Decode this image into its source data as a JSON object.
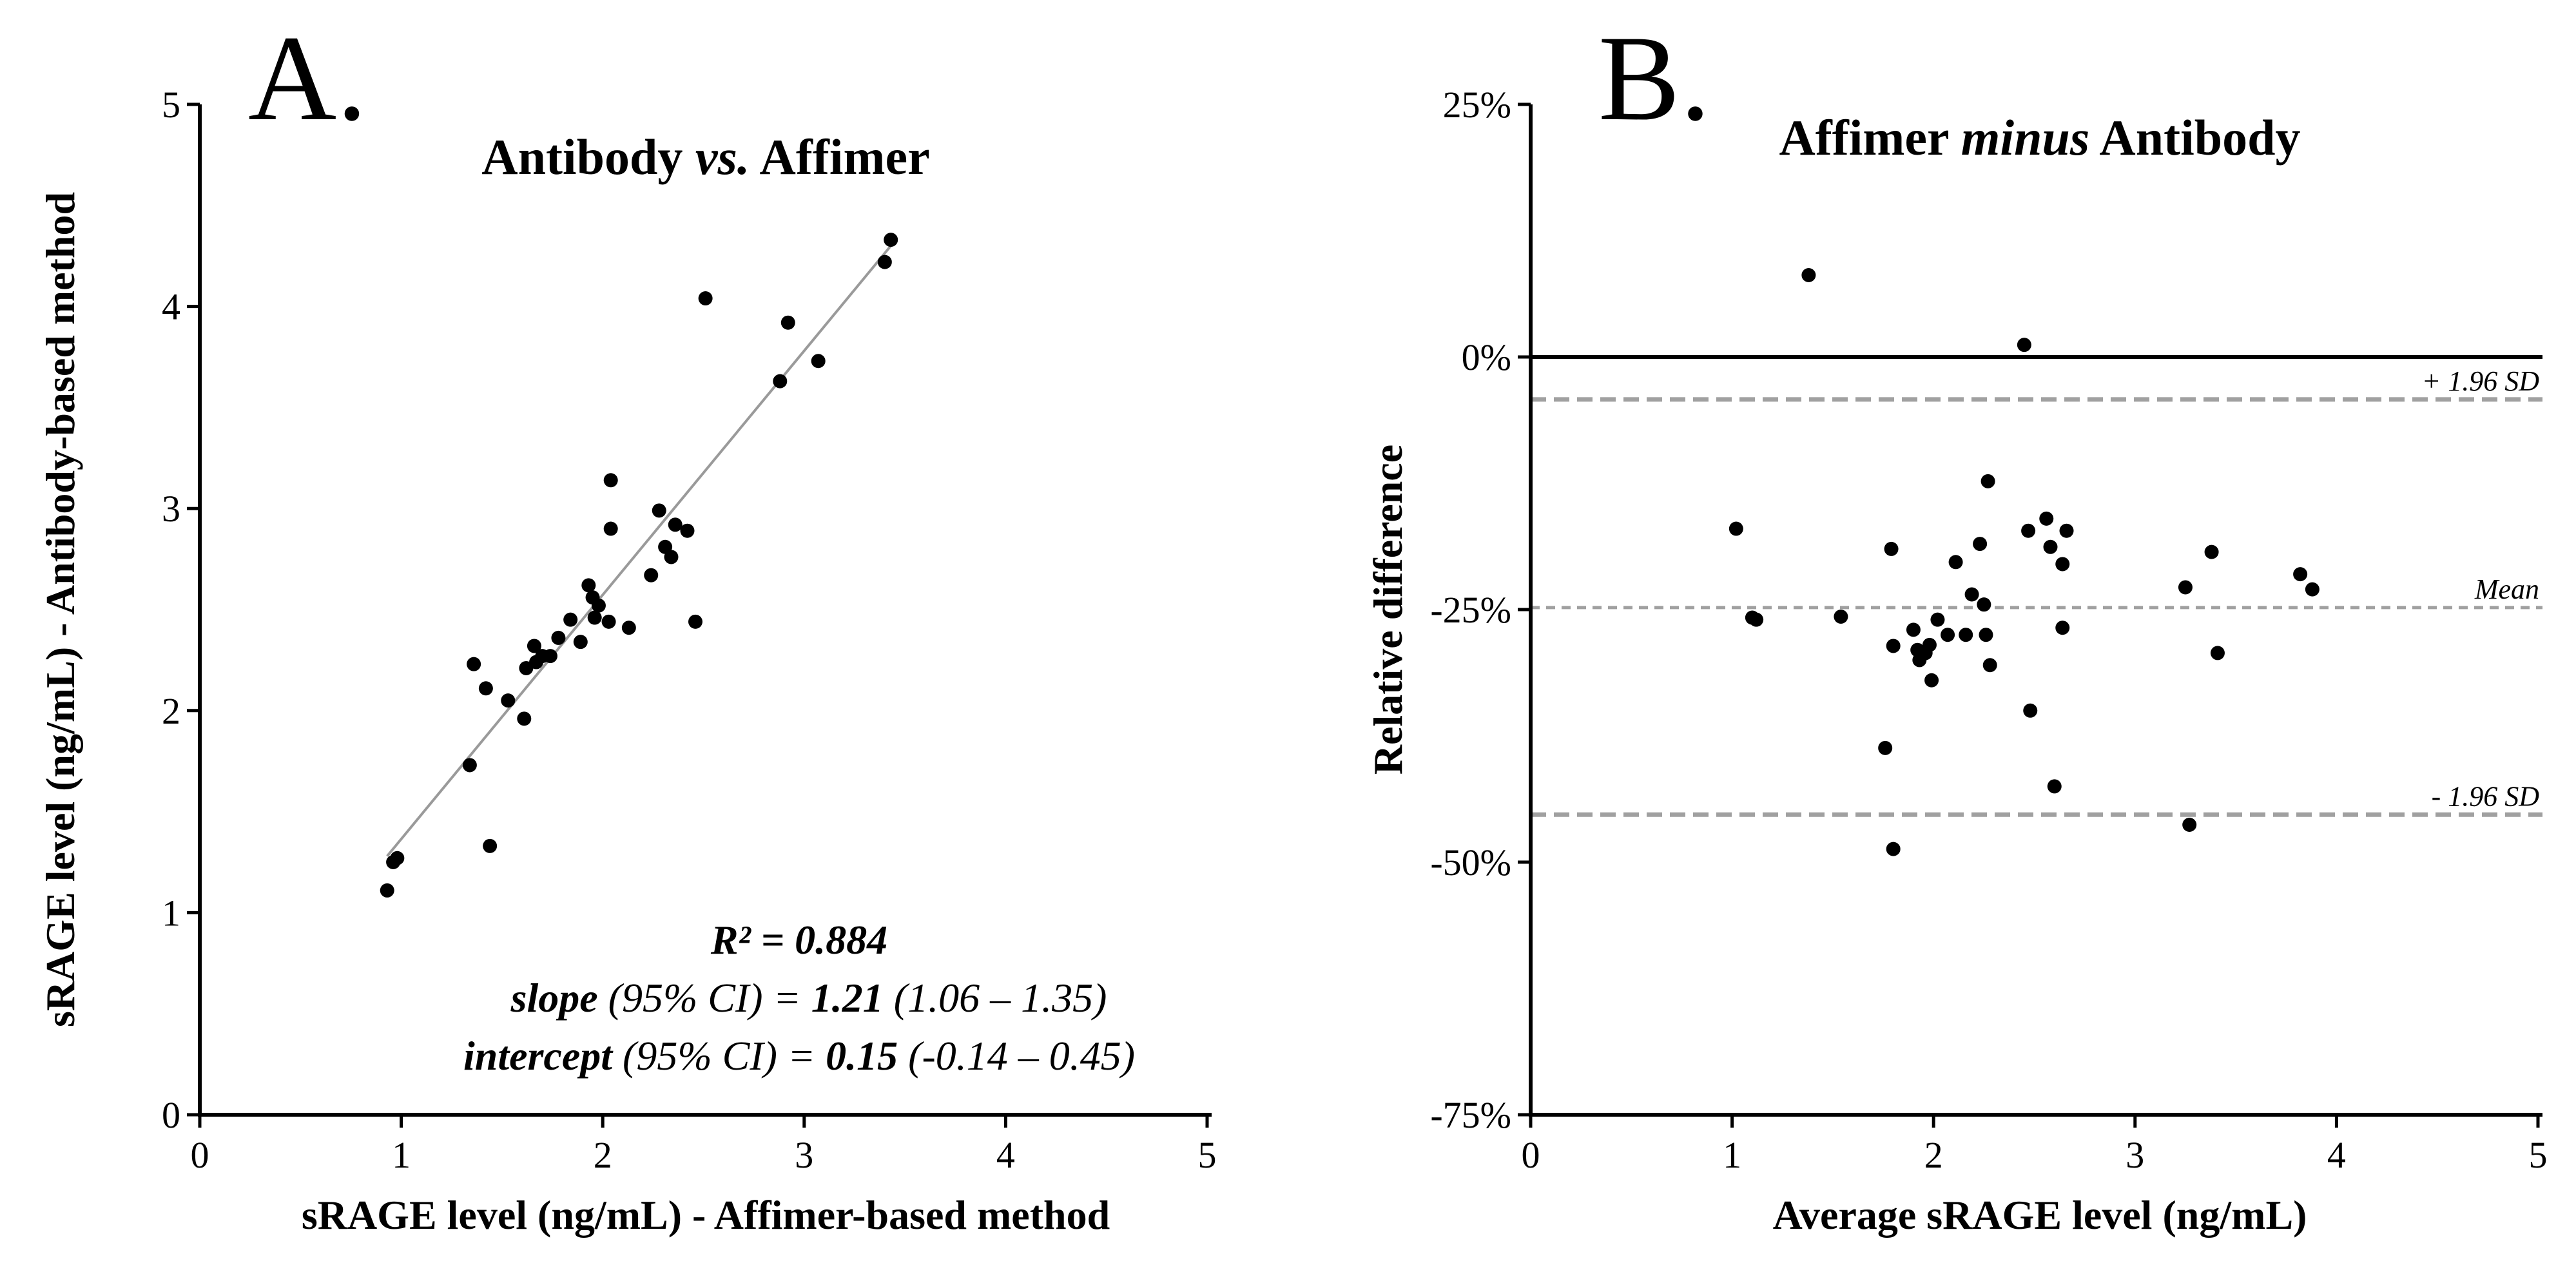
{
  "chart_data": [
    {
      "type": "scatter",
      "panel_label": "A.",
      "title": {
        "part1": "Antibody ",
        "emph": "vs.",
        "part2": " Affimer"
      },
      "xlabel": "sRAGE level (ng/mL) - Affimer-based method",
      "ylabel": "sRAGE level (ng/mL) - Antibody-based method",
      "xlim": [
        0,
        5
      ],
      "ylim": [
        0,
        5
      ],
      "x_ticks": [
        0,
        1,
        2,
        3,
        4,
        5
      ],
      "y_ticks": [
        0,
        1,
        2,
        3,
        4,
        5
      ],
      "x_tick_labels": [
        "0",
        "1",
        "2",
        "3",
        "4",
        "5"
      ],
      "y_tick_labels": [
        "0",
        "1",
        "2",
        "3",
        "4",
        "5"
      ],
      "points": [
        [
          0.93,
          1.11
        ],
        [
          0.96,
          1.25
        ],
        [
          0.98,
          1.27
        ],
        [
          1.34,
          1.73
        ],
        [
          1.36,
          2.23
        ],
        [
          1.42,
          2.11
        ],
        [
          1.44,
          1.33
        ],
        [
          1.53,
          2.05
        ],
        [
          1.61,
          1.96
        ],
        [
          1.62,
          2.21
        ],
        [
          1.66,
          2.32
        ],
        [
          1.67,
          2.24
        ],
        [
          1.7,
          2.27
        ],
        [
          1.74,
          2.27
        ],
        [
          1.78,
          2.36
        ],
        [
          1.84,
          2.45
        ],
        [
          1.89,
          2.34
        ],
        [
          1.93,
          2.62
        ],
        [
          1.95,
          2.56
        ],
        [
          1.96,
          2.46
        ],
        [
          1.98,
          2.52
        ],
        [
          2.03,
          2.44
        ],
        [
          2.04,
          2.9
        ],
        [
          2.04,
          3.14
        ],
        [
          2.13,
          2.41
        ],
        [
          2.24,
          2.67
        ],
        [
          2.28,
          2.99
        ],
        [
          2.31,
          2.81
        ],
        [
          2.34,
          2.76
        ],
        [
          2.36,
          2.92
        ],
        [
          2.42,
          2.89
        ],
        [
          2.46,
          2.44
        ],
        [
          2.51,
          4.04
        ],
        [
          2.88,
          3.63
        ],
        [
          2.92,
          3.92
        ],
        [
          3.07,
          3.73
        ],
        [
          3.4,
          4.22
        ],
        [
          3.43,
          4.33
        ]
      ],
      "fit_line": {
        "x": [
          0.93,
          3.43
        ],
        "y": [
          1.28,
          4.3
        ]
      },
      "stats": {
        "r2_label": "R² = ",
        "r2_value": "0.884",
        "slope_label": "slope",
        "slope_ci_text": " (95% CI) = ",
        "slope_value": "1.21",
        "slope_ci": " (1.06 – 1.35)",
        "intercept_label": "intercept",
        "intercept_ci_text": " (95% CI) = ",
        "intercept_value": "0.15",
        "intercept_ci": " (-0.14 – 0.45)"
      }
    },
    {
      "type": "scatter",
      "panel_label": "B.",
      "title": {
        "part1": "Affimer ",
        "emph": "minus",
        "part2": " Antibody"
      },
      "xlabel": "Average sRAGE level (ng/mL)",
      "ylabel": "Relative difference",
      "xlim": [
        0,
        5
      ],
      "ylim": [
        -75,
        25
      ],
      "x_ticks": [
        0,
        1,
        2,
        3,
        4,
        5
      ],
      "y_ticks": [
        -75,
        -50,
        -25,
        0,
        25
      ],
      "x_tick_labels": [
        "0",
        "1",
        "2",
        "3",
        "4",
        "5"
      ],
      "y_tick_labels": [
        "-75%",
        "-50%",
        "-25%",
        "0%",
        "25%"
      ],
      "zero_line": 0,
      "reference_lines": [
        {
          "value": -4.2,
          "label": "+ 1.96 SD",
          "style": "dashed"
        },
        {
          "value": -24.8,
          "label": "Mean",
          "style": "dashed"
        },
        {
          "value": -45.3,
          "label": "- 1.96 SD",
          "style": "dashed"
        }
      ],
      "points": [
        [
          1.02,
          -17
        ],
        [
          1.1,
          -25.8
        ],
        [
          1.12,
          -26.0
        ],
        [
          1.38,
          8.1
        ],
        [
          1.54,
          -25.7
        ],
        [
          1.76,
          -38.7
        ],
        [
          1.79,
          -19.0
        ],
        [
          1.8,
          -28.6
        ],
        [
          1.8,
          -48.7
        ],
        [
          1.9,
          -27.0
        ],
        [
          1.92,
          -29.0
        ],
        [
          1.93,
          -30.0
        ],
        [
          1.96,
          -29.3
        ],
        [
          1.98,
          -28.5
        ],
        [
          1.99,
          -32.0
        ],
        [
          2.02,
          -26.0
        ],
        [
          2.07,
          -27.5
        ],
        [
          2.11,
          -20.3
        ],
        [
          2.16,
          -27.5
        ],
        [
          2.19,
          -23.5
        ],
        [
          2.23,
          -18.5
        ],
        [
          2.25,
          -24.5
        ],
        [
          2.26,
          -27.5
        ],
        [
          2.27,
          -12.3
        ],
        [
          2.28,
          -30.5
        ],
        [
          2.45,
          1.2
        ],
        [
          2.47,
          -17.2
        ],
        [
          2.48,
          -35.0
        ],
        [
          2.56,
          -16.0
        ],
        [
          2.58,
          -18.8
        ],
        [
          2.6,
          -42.5
        ],
        [
          2.64,
          -20.5
        ],
        [
          2.64,
          -26.8
        ],
        [
          2.66,
          -17.2
        ],
        [
          3.25,
          -22.8
        ],
        [
          3.27,
          -46.3
        ],
        [
          3.38,
          -19.3
        ],
        [
          3.41,
          -29.3
        ],
        [
          3.82,
          -21.5
        ],
        [
          3.88,
          -23.0
        ]
      ]
    }
  ]
}
